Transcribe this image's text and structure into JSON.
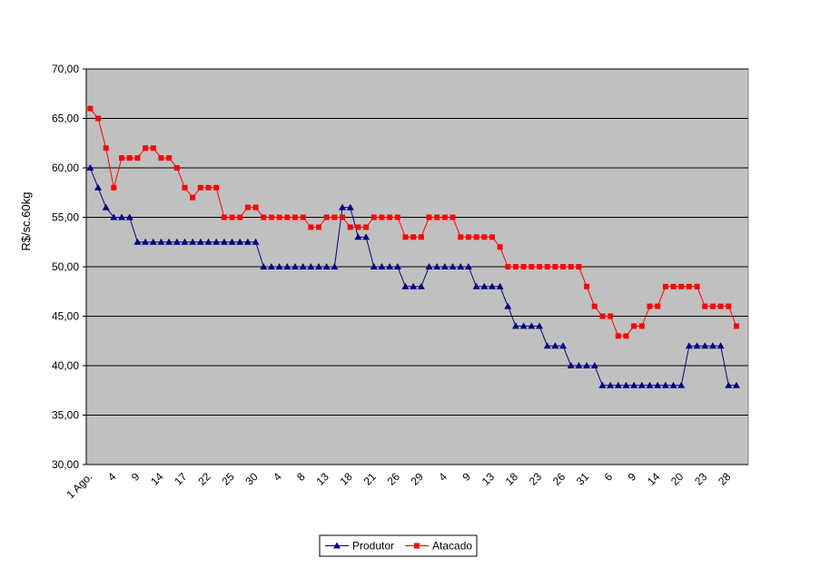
{
  "chart_data": {
    "type": "line",
    "ylabel": "R$/sc.60kg",
    "categories": [
      "1 Ago.",
      null,
      null,
      "4",
      null,
      null,
      "9",
      null,
      null,
      "14",
      null,
      null,
      "17",
      null,
      null,
      "22",
      null,
      null,
      "25",
      null,
      null,
      "30",
      null,
      null,
      "4",
      null,
      null,
      "8",
      null,
      null,
      "13",
      null,
      null,
      "18",
      null,
      null,
      "21",
      null,
      null,
      "26",
      null,
      null,
      "29",
      null,
      null,
      "4",
      null,
      null,
      "9",
      null,
      null,
      "13",
      null,
      null,
      "18",
      null,
      null,
      "23",
      null,
      null,
      "26",
      null,
      null,
      "31",
      null,
      null,
      "6",
      null,
      null,
      "9",
      null,
      null,
      "14",
      null,
      null,
      "20",
      null,
      null,
      "23",
      null,
      null,
      "28",
      null,
      null
    ],
    "series": [
      {
        "name": "Produtor",
        "color": "#000080",
        "marker": "triangle",
        "values": [
          60,
          58,
          56,
          55,
          55,
          55,
          52.5,
          52.5,
          52.5,
          52.5,
          52.5,
          52.5,
          52.5,
          52.5,
          52.5,
          52.5,
          52.5,
          52.5,
          52.5,
          52.5,
          52.5,
          52.5,
          50,
          50,
          50,
          50,
          50,
          50,
          50,
          50,
          50,
          50,
          56,
          56,
          53,
          53,
          50,
          50,
          50,
          50,
          48,
          48,
          48,
          50,
          50,
          50,
          50,
          50,
          50,
          48,
          48,
          48,
          48,
          46,
          44,
          44,
          44,
          44,
          42,
          42,
          42,
          40,
          40,
          40,
          40,
          38,
          38,
          38,
          38,
          38,
          38,
          38,
          38,
          38,
          38,
          38,
          42,
          42,
          42,
          42,
          42,
          38,
          38,
          null
        ]
      },
      {
        "name": "Atacado",
        "color": "#ff0000",
        "marker": "square",
        "values": [
          66,
          65,
          62,
          58,
          61,
          61,
          61,
          62,
          62,
          61,
          61,
          60,
          58,
          57,
          58,
          58,
          58,
          55,
          55,
          55,
          56,
          56,
          55,
          55,
          55,
          55,
          55,
          55,
          54,
          54,
          55,
          55,
          55,
          54,
          54,
          54,
          55,
          55,
          55,
          55,
          53,
          53,
          53,
          55,
          55,
          55,
          55,
          53,
          53,
          53,
          53,
          53,
          52,
          50,
          50,
          50,
          50,
          50,
          50,
          50,
          50,
          50,
          50,
          48,
          46,
          45,
          45,
          43,
          43,
          44,
          44,
          46,
          46,
          48,
          48,
          48,
          48,
          48,
          46,
          46,
          46,
          46,
          44,
          null
        ]
      }
    ],
    "ylim": [
      30,
      70
    ],
    "yticks": [
      {
        "value": 30,
        "label": "30,00"
      },
      {
        "value": 35,
        "label": "35,00"
      },
      {
        "value": 40,
        "label": "40,00"
      },
      {
        "value": 45,
        "label": "45,00"
      },
      {
        "value": 50,
        "label": "50,00"
      },
      {
        "value": 55,
        "label": "55,00"
      },
      {
        "value": 60,
        "label": "60,00"
      },
      {
        "value": 65,
        "label": "65,00"
      },
      {
        "value": 70,
        "label": "70,00"
      }
    ],
    "grid": true,
    "legend": "bottom"
  }
}
